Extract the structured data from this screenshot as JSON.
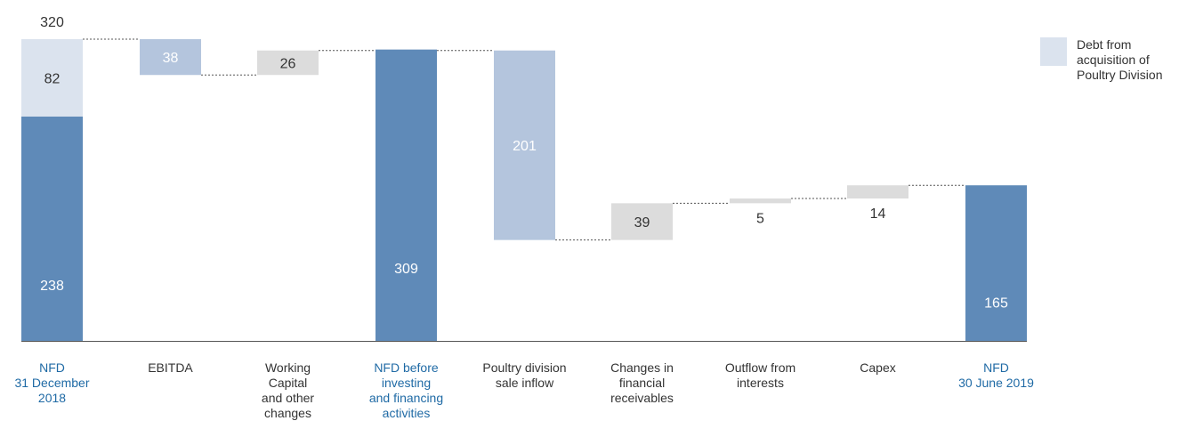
{
  "chart_data": {
    "type": "bar",
    "subtype": "waterfall",
    "categories": [
      [
        "NFD",
        "31 December",
        "2018"
      ],
      [
        "EBITDA"
      ],
      [
        "Working",
        "Capital",
        "and other",
        "changes"
      ],
      [
        "NFD before",
        "investing",
        "and financing",
        "activities"
      ],
      [
        "Poultry division",
        "sale inflow"
      ],
      [
        "Changes in",
        "financial",
        "receivables"
      ],
      [
        "Outflow from",
        "interests"
      ],
      [
        "Capex"
      ],
      [
        "NFD",
        "30 June 2019"
      ]
    ],
    "bars": [
      {
        "kind": "total",
        "start": 0,
        "end": 238,
        "label": "238",
        "color": "#5f8ab8",
        "label_color": "#ffffff",
        "category_color": "#1f6aa5"
      },
      {
        "kind": "stacked",
        "start": 238,
        "end": 320,
        "label": "82",
        "color": "#dbe3ee",
        "label_color": "#333333"
      },
      {
        "kind": "delta",
        "start": 320,
        "end": 282,
        "label": "38",
        "color": "#b4c5dd",
        "label_color": "#ffffff",
        "category_color": "#333333"
      },
      {
        "kind": "delta",
        "start": 282,
        "end": 308,
        "label": "26",
        "color": "#dcdcdc",
        "label_color": "#333333",
        "category_color": "#333333"
      },
      {
        "kind": "total",
        "start": 0,
        "end": 309,
        "label": "309",
        "color": "#5f8ab8",
        "label_color": "#ffffff",
        "category_color": "#1f6aa5"
      },
      {
        "kind": "delta",
        "start": 308,
        "end": 107,
        "label": "201",
        "color": "#b4c5dd",
        "label_color": "#ffffff",
        "category_color": "#333333"
      },
      {
        "kind": "delta",
        "start": 107,
        "end": 146,
        "label": "39",
        "color": "#dcdcdc",
        "label_color": "#333333",
        "category_color": "#333333"
      },
      {
        "kind": "delta",
        "start": 146,
        "end": 151,
        "label": "5",
        "color": "#dcdcdc",
        "label_color": "#333333",
        "category_color": "#333333",
        "label_below": true
      },
      {
        "kind": "delta",
        "start": 151,
        "end": 165,
        "label": "14",
        "color": "#dcdcdc",
        "label_color": "#333333",
        "category_color": "#333333",
        "label_below": true
      },
      {
        "kind": "total",
        "start": 0,
        "end": 165,
        "label": "165",
        "color": "#5f8ab8",
        "label_color": "#ffffff",
        "category_color": "#1f6aa5"
      }
    ],
    "top_labels": [
      {
        "index": 0,
        "value": 320,
        "label": "320"
      }
    ],
    "connectors": [
      [
        0,
        320,
        1
      ],
      [
        1,
        282,
        2
      ],
      [
        2,
        308,
        3
      ],
      [
        3,
        308,
        4
      ],
      [
        4,
        107,
        5
      ],
      [
        5,
        146,
        6
      ],
      [
        6,
        151,
        7
      ],
      [
        7,
        165,
        8
      ]
    ],
    "legend": [
      {
        "label_lines": [
          "Debt from",
          "acquisition of",
          "Poultry Division"
        ],
        "color": "#dbe3ee"
      }
    ],
    "ylim": [
      0,
      320
    ],
    "grid": false,
    "colors": {
      "total_bar": "#5f8ab8",
      "light_blue": "#b4c5dd",
      "pale_blue": "#dbe3ee",
      "gray": "#dcdcdc",
      "axis": "#555555",
      "text": "#333333",
      "highlight_text": "#1f6aa5"
    }
  }
}
